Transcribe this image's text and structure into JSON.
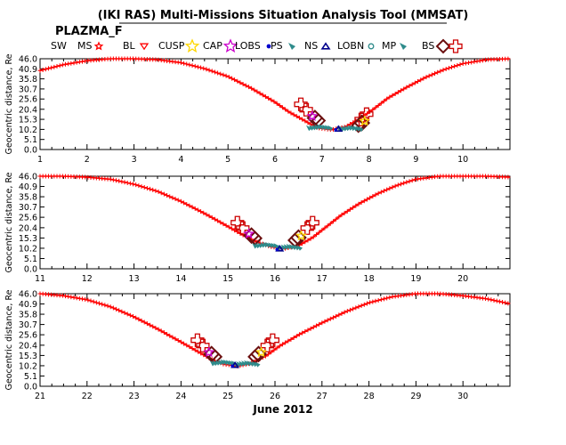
{
  "title": "(IKI RAS) Multi-Missions Situation Analysis Tool (MMSAT)",
  "subtitle": "PLAZMA_F",
  "xlabel": "June 2012",
  "ylabel": "Geocentric distance, Re",
  "legend": [
    {
      "label": "SW",
      "symbol": "none",
      "color": "#000000"
    },
    {
      "label": "MS",
      "symbol": "star",
      "color": "#ff0000"
    },
    {
      "label": "BL",
      "symbol": "tri-down",
      "color": "#ff0000"
    },
    {
      "label": "CUSP",
      "symbol": "star",
      "color": "#ffd700"
    },
    {
      "label": "CAP",
      "symbol": "star",
      "color": "#cc00cc"
    },
    {
      "label": "LOBS",
      "symbol": "dot",
      "color": "#0000cc"
    },
    {
      "label": "PS",
      "symbol": "flag",
      "color": "#2e8b8b"
    },
    {
      "label": "NS",
      "symbol": "tri-up",
      "color": "#00008b"
    },
    {
      "label": "LOBN",
      "symbol": "circle",
      "color": "#2e8b8b"
    },
    {
      "label": "MP",
      "symbol": "flag",
      "color": "#2e8b8b"
    },
    {
      "label": "BS",
      "symbol": "diamond",
      "color": "#6b0f0f"
    },
    {
      "label": "",
      "symbol": "cross",
      "color": "#cc0000"
    }
  ],
  "colors": {
    "orbit": "#ff0000",
    "ps": "#2e8b8b",
    "ns": "#00008b",
    "mp": "#6b0f0f",
    "bs": "#cc0000",
    "cusp": "#ffd700",
    "cap": "#cc00cc",
    "lobs": "#0000cc"
  },
  "chart_data": [
    {
      "type": "line",
      "xlim": [
        1,
        11
      ],
      "ylim": [
        0,
        46
      ],
      "yticks": [
        "0.0",
        "5.1",
        "10.2",
        "15.3",
        "20.4",
        "25.6",
        "30.7",
        "35.8",
        "40.9",
        "46.0"
      ],
      "xticks": [
        "1",
        "2",
        "3",
        "4",
        "5",
        "6",
        "7",
        "8",
        "9",
        "10"
      ],
      "series": [
        {
          "x": [
            1.0,
            1.5,
            2.0,
            2.5,
            3.0,
            3.5,
            4.0,
            4.5,
            5.0,
            5.5,
            6.0,
            6.3,
            6.6,
            6.9,
            7.2,
            7.5,
            7.8,
            8.1,
            8.4,
            8.8,
            9.2,
            9.6,
            10.0,
            10.5,
            11.0
          ],
          "y": [
            40.0,
            43.0,
            45.0,
            46.0,
            46.0,
            45.5,
            44.0,
            41.0,
            37.0,
            31.0,
            24.0,
            19.0,
            15.0,
            11.0,
            10.0,
            11.5,
            15.5,
            20.5,
            26.0,
            31.5,
            36.5,
            40.5,
            43.5,
            45.5,
            46.0
          ]
        }
      ],
      "regions": [
        {
          "name": "BS",
          "x": [
            6.55,
            7.95
          ],
          "y": [
            22,
            17
          ]
        },
        {
          "name": "MP",
          "x": [
            6.85,
            7.85
          ],
          "y": [
            16,
            13.5
          ]
        },
        {
          "name": "PS",
          "x": [
            6.95,
            7.6
          ],
          "y": [
            11.5,
            11.0
          ]
        },
        {
          "name": "NS",
          "x": [
            7.35
          ],
          "y": [
            10.5
          ]
        }
      ]
    },
    {
      "type": "line",
      "xlim": [
        11,
        21
      ],
      "ylim": [
        0,
        46
      ],
      "yticks": [
        "0.0",
        "5.1",
        "10.2",
        "15.3",
        "20.4",
        "25.6",
        "30.7",
        "35.8",
        "40.9",
        "46.0"
      ],
      "xticks": [
        "11",
        "12",
        "13",
        "14",
        "15",
        "16",
        "17",
        "18",
        "19",
        "20"
      ],
      "series": [
        {
          "x": [
            11.0,
            11.5,
            12.0,
            12.5,
            13.0,
            13.5,
            14.0,
            14.5,
            15.0,
            15.3,
            15.6,
            15.9,
            16.2,
            16.5,
            16.8,
            17.1,
            17.4,
            17.8,
            18.2,
            18.6,
            19.0,
            19.5,
            20.0,
            20.5,
            21.0
          ],
          "y": [
            46.0,
            46.0,
            45.5,
            44.5,
            42.0,
            38.5,
            33.5,
            27.5,
            21.0,
            17.0,
            13.5,
            11.0,
            10.0,
            11.5,
            15.5,
            21.0,
            26.5,
            32.5,
            37.5,
            41.5,
            44.5,
            46.0,
            46.0,
            46.0,
            45.5
          ]
        }
      ],
      "regions": [
        {
          "name": "BS",
          "x": [
            15.2,
            16.8
          ],
          "y": [
            22,
            22
          ]
        },
        {
          "name": "MP",
          "x": [
            15.5,
            16.5
          ],
          "y": [
            16.5,
            15.5
          ]
        },
        {
          "name": "PS",
          "x": [
            15.8,
            16.3
          ],
          "y": [
            12,
            11.0
          ]
        },
        {
          "name": "NS",
          "x": [
            16.1
          ],
          "y": [
            10.0
          ]
        }
      ]
    },
    {
      "type": "line",
      "xlim": [
        21,
        31
      ],
      "ylim": [
        0,
        46
      ],
      "yticks": [
        "0.0",
        "5.1",
        "10.2",
        "15.3",
        "20.4",
        "25.6",
        "30.7",
        "35.8",
        "40.9",
        "46.0"
      ],
      "xticks": [
        "21",
        "22",
        "23",
        "24",
        "25",
        "26",
        "27",
        "28",
        "29",
        "30"
      ],
      "series": [
        {
          "x": [
            21.0,
            21.5,
            22.0,
            22.5,
            23.0,
            23.5,
            24.0,
            24.3,
            24.6,
            24.9,
            25.2,
            25.5,
            25.8,
            26.1,
            26.5,
            27.0,
            27.5,
            28.0,
            28.5,
            29.0,
            29.5,
            30.0,
            30.5,
            31.0
          ],
          "y": [
            46.0,
            45.0,
            43.0,
            39.5,
            34.5,
            28.5,
            22.0,
            18.0,
            14.0,
            11.0,
            10.0,
            11.5,
            15.0,
            20.0,
            25.5,
            31.5,
            37.0,
            41.5,
            44.5,
            46.0,
            46.0,
            45.0,
            43.5,
            41.0
          ]
        }
      ],
      "regions": [
        {
          "name": "BS",
          "x": [
            24.35,
            25.95
          ],
          "y": [
            22,
            22
          ]
        },
        {
          "name": "MP",
          "x": [
            24.65,
            25.65
          ],
          "y": [
            16,
            16
          ]
        },
        {
          "name": "PS",
          "x": [
            24.9,
            25.4
          ],
          "y": [
            12,
            11.5
          ]
        },
        {
          "name": "NS",
          "x": [
            25.15
          ],
          "y": [
            10.5
          ]
        }
      ]
    }
  ]
}
